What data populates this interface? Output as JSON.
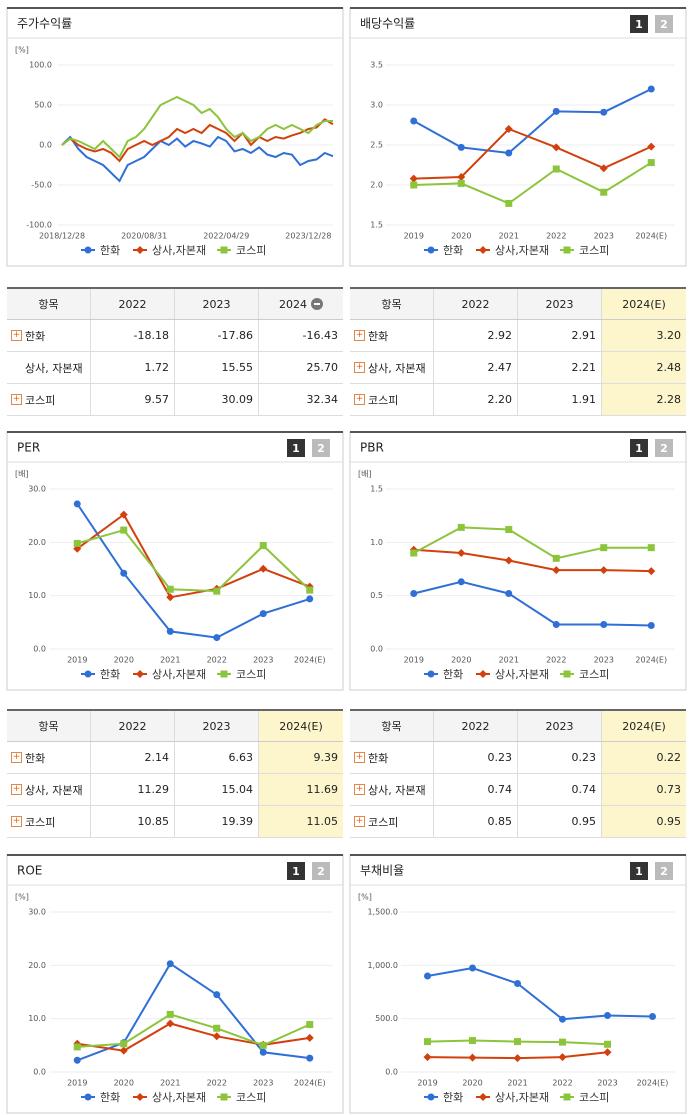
{
  "chart_data": [
    {
      "type": "line",
      "title": "주가수익률",
      "unit": "[%]",
      "markers": false,
      "grid": true,
      "categories": [
        "2018/12/28",
        null,
        null,
        null,
        null,
        null,
        null,
        null,
        null,
        null,
        "2020/08/31",
        null,
        null,
        null,
        null,
        null,
        null,
        null,
        null,
        null,
        "2022/04/29",
        null,
        null,
        null,
        null,
        null,
        null,
        null,
        null,
        null,
        "2023/12/28",
        null,
        null,
        null
      ],
      "ylim": [
        -100,
        100
      ],
      "yticks": [
        {
          "value": -100,
          "label": "-100.0"
        },
        {
          "value": -50,
          "label": "-50.0"
        },
        {
          "value": 0,
          "label": "0.0"
        },
        {
          "value": 50,
          "label": "50.0"
        },
        {
          "value": 100,
          "label": "100.0"
        }
      ],
      "series": [
        {
          "name": "한화",
          "color": "#2f6fd6",
          "marker": "circle",
          "values": [
            0,
            10,
            -5,
            -15,
            -20,
            -25,
            -35,
            -45,
            -25,
            -20,
            -15,
            -5,
            5,
            0,
            8,
            -2,
            5,
            2,
            -2,
            10,
            5,
            -8,
            -5,
            -10,
            -3,
            -12,
            -15,
            -10,
            -12,
            -25,
            -20,
            -18,
            -10,
            -14
          ]
        },
        {
          "name": "상사,자본재",
          "color": "#d2400e",
          "marker": "diamond",
          "values": [
            0,
            8,
            0,
            -5,
            -8,
            -5,
            -10,
            -20,
            -5,
            0,
            5,
            0,
            5,
            10,
            20,
            15,
            20,
            15,
            25,
            20,
            15,
            5,
            15,
            0,
            10,
            5,
            10,
            8,
            12,
            15,
            20,
            22,
            32,
            26
          ]
        },
        {
          "name": "코스피",
          "color": "#8cc43c",
          "marker": "square",
          "values": [
            0,
            8,
            5,
            0,
            -5,
            5,
            -5,
            -15,
            5,
            10,
            20,
            35,
            50,
            55,
            60,
            55,
            50,
            40,
            45,
            35,
            20,
            10,
            15,
            5,
            10,
            20,
            25,
            20,
            25,
            20,
            15,
            25,
            30,
            30
          ]
        }
      ]
    },
    {
      "type": "line",
      "title": "배당수익률",
      "tabs": [
        "1",
        "2"
      ],
      "markers": true,
      "grid": true,
      "categories": [
        "2019",
        "2020",
        "2021",
        "2022",
        "2023",
        "2024(E)"
      ],
      "ylim": [
        1.5,
        3.5
      ],
      "yticks": [
        1.5,
        {
          "value": 2,
          "label": "2.0"
        },
        2.5,
        {
          "value": 3,
          "label": "3.0"
        },
        3.5
      ],
      "series": [
        {
          "name": "한화",
          "color": "#2f6fd6",
          "marker": "circle",
          "values": [
            2.8,
            2.47,
            2.4,
            2.92,
            2.91,
            3.2
          ]
        },
        {
          "name": "상사,자본재",
          "color": "#d2400e",
          "marker": "diamond",
          "values": [
            2.08,
            2.1,
            2.7,
            2.47,
            2.21,
            2.48
          ]
        },
        {
          "name": "코스피",
          "color": "#8cc43c",
          "marker": "square",
          "values": [
            2.0,
            2.02,
            1.77,
            2.2,
            1.91,
            2.28
          ]
        }
      ]
    },
    {
      "type": "line",
      "title": "PER",
      "tabs": [
        "1",
        "2"
      ],
      "unit": "[배]",
      "markers": true,
      "grid": true,
      "categories": [
        "2019",
        "2020",
        "2021",
        "2022",
        "2023",
        "2024(E)"
      ],
      "ylim": [
        0,
        30
      ],
      "yticks": [
        {
          "value": 0,
          "label": "0.0"
        },
        {
          "value": 10,
          "label": "10.0"
        },
        {
          "value": 20,
          "label": "20.0"
        },
        {
          "value": 30,
          "label": "30.0"
        }
      ],
      "series": [
        {
          "name": "한화",
          "color": "#2f6fd6",
          "marker": "circle",
          "values": [
            27.2,
            14.2,
            3.3,
            2.14,
            6.63,
            9.39
          ]
        },
        {
          "name": "상사,자본재",
          "color": "#d2400e",
          "marker": "diamond",
          "values": [
            18.8,
            25.2,
            9.7,
            11.29,
            15.04,
            11.69
          ]
        },
        {
          "name": "코스피",
          "color": "#8cc43c",
          "marker": "square",
          "values": [
            19.8,
            22.3,
            11.2,
            10.85,
            19.39,
            11.05
          ]
        }
      ]
    },
    {
      "type": "line",
      "title": "PBR",
      "tabs": [
        "1",
        "2"
      ],
      "unit": "[배]",
      "markers": true,
      "grid": true,
      "categories": [
        "2019",
        "2020",
        "2021",
        "2022",
        "2023",
        "2024(E)"
      ],
      "ylim": [
        0,
        1.5
      ],
      "yticks": [
        {
          "value": 0,
          "label": "0.0"
        },
        0.5,
        {
          "value": 1,
          "label": "1.0"
        },
        1.5
      ],
      "series": [
        {
          "name": "한화",
          "color": "#2f6fd6",
          "marker": "circle",
          "values": [
            0.52,
            0.63,
            0.52,
            0.23,
            0.23,
            0.22
          ]
        },
        {
          "name": "상사,자본재",
          "color": "#d2400e",
          "marker": "diamond",
          "values": [
            0.93,
            0.9,
            0.83,
            0.74,
            0.74,
            0.73
          ]
        },
        {
          "name": "코스피",
          "color": "#8cc43c",
          "marker": "square",
          "values": [
            0.9,
            1.14,
            1.12,
            0.85,
            0.95,
            0.95
          ]
        }
      ]
    },
    {
      "type": "line",
      "title": "ROE",
      "tabs": [
        "1",
        "2"
      ],
      "unit": "[%]",
      "markers": true,
      "grid": true,
      "categories": [
        "2019",
        "2020",
        "2021",
        "2022",
        "2023",
        "2024(E)"
      ],
      "ylim": [
        0,
        30
      ],
      "yticks": [
        {
          "value": 0,
          "label": "0.0"
        },
        {
          "value": 10,
          "label": "10.0"
        },
        {
          "value": 20,
          "label": "20.0"
        },
        {
          "value": 30,
          "label": "30.0"
        }
      ],
      "series": [
        {
          "name": "한화",
          "color": "#2f6fd6",
          "marker": "circle",
          "values": [
            2.2,
            5.5,
            20.3,
            14.5,
            3.7,
            2.6
          ]
        },
        {
          "name": "상사,자본재",
          "color": "#d2400e",
          "marker": "diamond",
          "values": [
            5.3,
            4.0,
            9.1,
            6.7,
            5.1,
            6.4
          ]
        },
        {
          "name": "코스피",
          "color": "#8cc43c",
          "marker": "square",
          "values": [
            4.7,
            5.3,
            10.8,
            8.2,
            5.0,
            8.9
          ]
        }
      ]
    },
    {
      "type": "line",
      "title": "부채비율",
      "tabs": [
        "1",
        "2"
      ],
      "unit": "[%]",
      "markers": true,
      "grid": true,
      "categories": [
        "2019",
        "2020",
        "2021",
        "2022",
        "2023",
        "2024(E)"
      ],
      "ylim": [
        0,
        1500
      ],
      "yticks": [
        {
          "value": 0,
          "label": "0.0"
        },
        {
          "value": 500,
          "label": "500.0"
        },
        {
          "value": 1000,
          "label": "1,000.0"
        },
        {
          "value": 1500,
          "label": "1,500.0"
        }
      ],
      "series": [
        {
          "name": "한화",
          "color": "#2f6fd6",
          "marker": "circle",
          "values": [
            900,
            975,
            830,
            495,
            530,
            520
          ]
        },
        {
          "name": "상사,자본재",
          "color": "#d2400e",
          "marker": "diamond",
          "values": [
            140,
            135,
            130,
            140,
            185,
            null
          ]
        },
        {
          "name": "코스피",
          "color": "#8cc43c",
          "marker": "square",
          "values": [
            285,
            295,
            285,
            280,
            260,
            null
          ]
        }
      ]
    }
  ],
  "tables": [
    {
      "header": [
        "항목",
        "2022",
        "2023",
        "2024"
      ],
      "rows": [
        [
          "한화",
          "-18.18",
          "-17.86",
          "-16.43"
        ],
        [
          "상사, 자본재",
          "1.72",
          "15.55",
          "25.70"
        ],
        [
          "코스피",
          "9.57",
          "30.09",
          "32.34"
        ]
      ]
    },
    {
      "header": [
        "항목",
        "2022",
        "2023",
        "2024(E)"
      ],
      "highlight_column": 3,
      "rows": [
        [
          "한화",
          "2.92",
          "2.91",
          "3.20"
        ],
        [
          "상사, 자본재",
          "2.47",
          "2.21",
          "2.48"
        ],
        [
          "코스피",
          "2.20",
          "1.91",
          "2.28"
        ]
      ]
    },
    {
      "header": [
        "항목",
        "2022",
        "2023",
        "2024(E)"
      ],
      "highlight_column": 3,
      "rows": [
        [
          "한화",
          "2.14",
          "6.63",
          "9.39"
        ],
        [
          "상사, 자본재",
          "11.29",
          "15.04",
          "11.69"
        ],
        [
          "코스피",
          "10.85",
          "19.39",
          "11.05"
        ]
      ]
    },
    {
      "header": [
        "항목",
        "2022",
        "2023",
        "2024(E)"
      ],
      "highlight_column": 3,
      "rows": [
        [
          "한화",
          "0.23",
          "0.23",
          "0.22"
        ],
        [
          "상사, 자본재",
          "0.74",
          "0.74",
          "0.73"
        ],
        [
          "코스피",
          "0.85",
          "0.95",
          "0.95"
        ]
      ]
    }
  ]
}
